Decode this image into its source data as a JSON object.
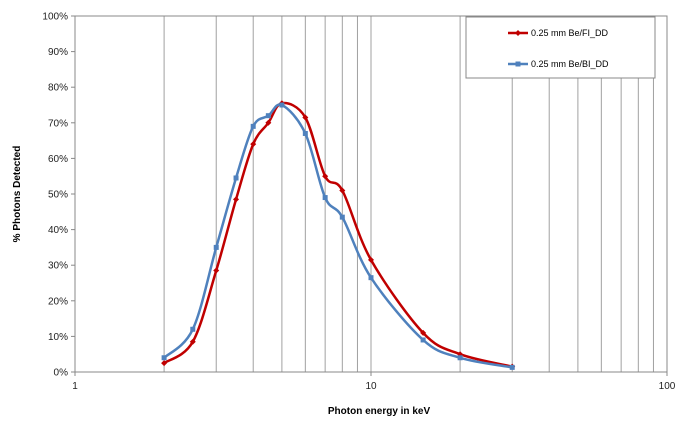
{
  "chart_data": {
    "type": "line",
    "title": "",
    "xlabel": "Photon energy in keV",
    "ylabel": "% Photons Detected",
    "x_scale": "log",
    "xlim": [
      1,
      100
    ],
    "ylim": [
      0,
      100
    ],
    "x_tick_labels": [
      "1",
      "10",
      "100"
    ],
    "x_tick_values": [
      1,
      10,
      100
    ],
    "y_tick_labels": [
      "0%",
      "10%",
      "20%",
      "30%",
      "40%",
      "50%",
      "60%",
      "70%",
      "80%",
      "90%",
      "100%"
    ],
    "y_tick_values": [
      0,
      10,
      20,
      30,
      40,
      50,
      60,
      70,
      80,
      90,
      100
    ],
    "grid": "vertical log gridlines at 1–10 and 10–100",
    "legend_position": "top-right",
    "series": [
      {
        "name": "0.25 mm Be/FI_DD",
        "color": "#c00000",
        "marker": "diamond",
        "x": [
          2,
          2.5,
          3,
          3.5,
          4,
          4.5,
          5,
          6,
          7,
          8,
          10,
          15,
          20,
          30
        ],
        "y": [
          2.5,
          8.5,
          28.5,
          48.5,
          64,
          70,
          75.5,
          71.5,
          55,
          51,
          31.5,
          11,
          5,
          1.5
        ]
      },
      {
        "name": "0.25 mm Be/BI_DD",
        "color": "#4f81bd",
        "marker": "square",
        "x": [
          2,
          2.5,
          3,
          3.5,
          4,
          4.5,
          5,
          6,
          7,
          8,
          10,
          15,
          20,
          30
        ],
        "y": [
          4,
          12,
          35,
          54.5,
          69,
          72,
          75,
          67,
          49,
          43.5,
          26.5,
          9,
          4,
          1.3
        ]
      }
    ]
  }
}
